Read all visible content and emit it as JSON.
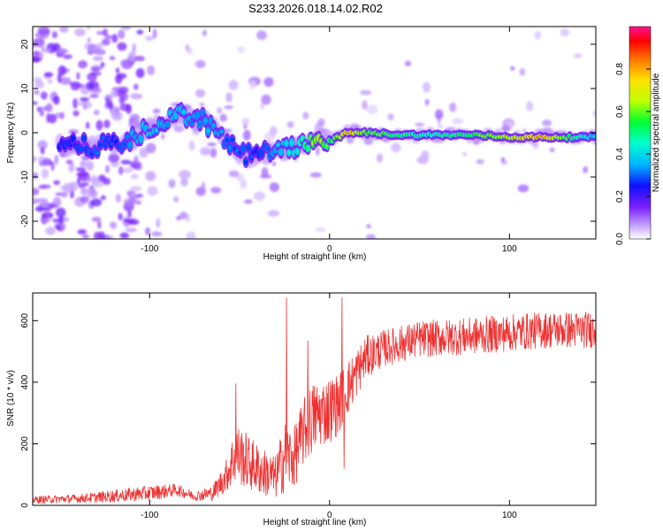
{
  "chart_data": [
    {
      "type": "heatmap",
      "title": "S233.2026.018.14.02.R02",
      "xlabel": "Height of straight line (km)",
      "ylabel": "Frequency (Hz)",
      "xlim": [
        -165,
        148
      ],
      "ylim": [
        -24,
        24
      ],
      "x_ticks": [
        -100,
        0,
        100
      ],
      "x_tick_labels": [
        "-100",
        "0",
        "100"
      ],
      "y_ticks": [
        -20,
        -10,
        0,
        10,
        20
      ],
      "y_tick_labels": [
        "-20",
        "-10",
        "0",
        "10",
        "20"
      ],
      "colorbar": {
        "label": "Normalized spectral amplitude",
        "range": [
          0,
          1
        ],
        "ticks": [
          0.0,
          0.2,
          0.4,
          0.6,
          0.8
        ],
        "tick_labels": [
          "0.0",
          "0.2",
          "0.4",
          "0.6",
          "0.8"
        ],
        "colors": [
          "#ffffff",
          "#7b1fff",
          "#0000ff",
          "#00c8ff",
          "#00ff60",
          "#ffff00",
          "#ff8000",
          "#ff0000",
          "#ff00aa"
        ]
      },
      "ridge": {
        "x": [
          -145,
          -130,
          -120,
          -110,
          -100,
          -92,
          -85,
          -78,
          -70,
          -62,
          -55,
          -48,
          -40,
          -32,
          -25,
          -18,
          -12,
          -6,
          0,
          10,
          20,
          40,
          60,
          80,
          100,
          120,
          148
        ],
        "freq": [
          -3,
          -3,
          -2.5,
          -2,
          1,
          2,
          4,
          4,
          3,
          0,
          -3,
          -5,
          -5,
          -4,
          -4,
          -3,
          -2,
          0,
          -2,
          0,
          0,
          -0.5,
          -0.5,
          -0.5,
          -1,
          -1,
          -1
        ],
        "amplitude": [
          0.2,
          0.25,
          0.2,
          0.3,
          0.35,
          0.3,
          0.35,
          0.3,
          0.3,
          0.3,
          0.25,
          0.25,
          0.2,
          0.3,
          0.35,
          0.4,
          0.5,
          0.7,
          0.5,
          0.8,
          0.6,
          0.5,
          0.45,
          0.55,
          0.7,
          0.8,
          0.3
        ]
      }
    },
    {
      "type": "line",
      "xlabel": "Height of straight line (km)",
      "ylabel": "SNR (10 * v/v)",
      "xlim": [
        -165,
        148
      ],
      "ylim": [
        0,
        690
      ],
      "x_ticks": [
        -100,
        0,
        100
      ],
      "x_tick_labels": [
        "-100",
        "0",
        "100"
      ],
      "y_ticks": [
        0,
        200,
        400,
        600
      ],
      "y_tick_labels": [
        "0",
        "200",
        "400",
        "600"
      ],
      "color": "#ee3333",
      "envelope": {
        "x": [
          -165,
          -140,
          -120,
          -100,
          -85,
          -75,
          -65,
          -58,
          -52,
          -45,
          -38,
          -30,
          -25,
          -20,
          -15,
          -10,
          -5,
          0,
          5,
          10,
          15,
          20,
          30,
          50,
          80,
          100,
          120,
          148
        ],
        "mean": [
          18,
          22,
          30,
          40,
          50,
          30,
          40,
          90,
          170,
          140,
          110,
          90,
          160,
          150,
          230,
          280,
          300,
          310,
          330,
          380,
          430,
          480,
          510,
          540,
          550,
          560,
          570,
          570
        ],
        "spread": [
          12,
          14,
          20,
          25,
          20,
          15,
          25,
          50,
          100,
          90,
          80,
          70,
          120,
          100,
          110,
          120,
          110,
          110,
          100,
          90,
          80,
          70,
          60,
          60,
          60,
          60,
          60,
          60
        ]
      },
      "spikes": [
        {
          "x": -52,
          "y": 395
        },
        {
          "x": -24,
          "y": 675
        },
        {
          "x": -12,
          "y": 535
        },
        {
          "x": 7,
          "y": 675
        },
        {
          "x": 8,
          "y": 120
        }
      ]
    }
  ]
}
